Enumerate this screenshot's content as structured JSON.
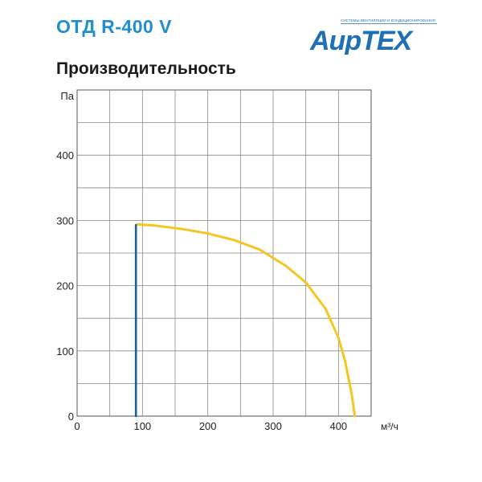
{
  "header": {
    "model": "ОТД R-400 V",
    "section_title": "Производительность"
  },
  "logo": {
    "tagline": "СИСТЕМЫ ВЕНТИЛЯЦИИ И КОНДИЦИОНИРОВАНИЯ",
    "wordmark": "АирТЕХ",
    "color": "#1e6fb5"
  },
  "chart_data": {
    "type": "line",
    "title": "Производительность",
    "xlabel": "м³/ч",
    "ylabel": "Па",
    "xlim": [
      0,
      450
    ],
    "ylim": [
      0,
      500
    ],
    "x_ticks": [
      0,
      100,
      200,
      300,
      400
    ],
    "y_ticks": [
      0,
      100,
      200,
      300,
      400
    ],
    "x_grid_step": 50,
    "y_grid_step": 50,
    "grid": true,
    "series": [
      {
        "color": "#f3c623",
        "x": [
          92,
          120,
          160,
          200,
          240,
          280,
          320,
          350,
          380,
          400,
          410,
          420,
          425
        ],
        "y": [
          294,
          292,
          287,
          280,
          270,
          255,
          230,
          205,
          165,
          120,
          85,
          35,
          0
        ]
      },
      {
        "color": "#1a5fa0",
        "x": [
          90,
          90
        ],
        "y": [
          0,
          293
        ]
      }
    ]
  }
}
